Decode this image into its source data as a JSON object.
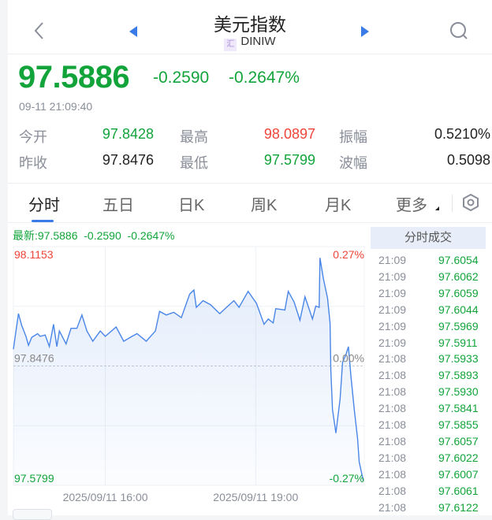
{
  "header": {
    "title": "美元指数",
    "symbol_badge": "汇",
    "symbol": "DINIW"
  },
  "quote": {
    "price": "97.5886",
    "change": "-0.2590",
    "change_pct": "-0.2647%",
    "timestamp": "09-11 21:09:40"
  },
  "stats": [
    {
      "label": "今开",
      "value": "97.8428",
      "color": "green"
    },
    {
      "label": "最高",
      "value": "98.0897",
      "color": "red"
    },
    {
      "label": "振幅",
      "value": "0.5210%",
      "color": "dark"
    },
    {
      "label": "昨收",
      "value": "97.8476",
      "color": "dark"
    },
    {
      "label": "最低",
      "value": "97.5799",
      "color": "green"
    },
    {
      "label": "波幅",
      "value": "0.5098",
      "color": "dark"
    }
  ],
  "tabs": [
    {
      "label": "分时",
      "active": true
    },
    {
      "label": "五日"
    },
    {
      "label": "日K"
    },
    {
      "label": "周K"
    },
    {
      "label": "月K"
    },
    {
      "label": "更多"
    }
  ],
  "chart_info": "最新:97.5886  -0.2590  -0.2647%",
  "colors": {
    "up": "#f0443a",
    "down": "#12a43a",
    "line": "#4a86e8",
    "accent": "#3b7be8"
  },
  "chart_data": {
    "type": "area",
    "ylim": [
      97.5799,
      98.1153
    ],
    "prev_close": 97.8476,
    "y_labels": {
      "top": "98.1153",
      "mid": "97.8476",
      "bottom": "97.5799"
    },
    "pct_labels": {
      "top": "0.27%",
      "mid": "0.00%",
      "bottom": "-0.27%"
    },
    "x_ticks": [
      {
        "time": "16:00",
        "label": "2025/09/11 16:00"
      },
      {
        "time": "19:00",
        "label": "2025/09/11 19:00"
      }
    ],
    "xlim": [
      "14:10",
      "21:10"
    ],
    "points": [
      [
        "14:10",
        97.885
      ],
      [
        "14:12",
        97.912
      ],
      [
        "14:16",
        97.965
      ],
      [
        "14:20",
        97.938
      ],
      [
        "14:25",
        97.914
      ],
      [
        "14:28",
        97.894
      ],
      [
        "14:32",
        97.912
      ],
      [
        "14:39",
        97.92
      ],
      [
        "14:42",
        97.914
      ],
      [
        "14:48",
        97.917
      ],
      [
        "14:53",
        97.891
      ],
      [
        "14:58",
        97.941
      ],
      [
        "15:02",
        97.891
      ],
      [
        "15:05",
        97.926
      ],
      [
        "15:13",
        97.897
      ],
      [
        "15:19",
        97.932
      ],
      [
        "15:26",
        97.932
      ],
      [
        "15:32",
        97.962
      ],
      [
        "15:38",
        97.926
      ],
      [
        "15:45",
        97.903
      ],
      [
        "15:54",
        97.926
      ],
      [
        "16:00",
        97.914
      ],
      [
        "16:13",
        97.935
      ],
      [
        "16:22",
        97.903
      ],
      [
        "16:32",
        97.914
      ],
      [
        "16:38",
        97.92
      ],
      [
        "16:49",
        97.903
      ],
      [
        "17:00",
        97.926
      ],
      [
        "17:05",
        97.97
      ],
      [
        "17:13",
        97.962
      ],
      [
        "17:22",
        97.968
      ],
      [
        "17:31",
        97.956
      ],
      [
        "17:41",
        98.009
      ],
      [
        "17:46",
        98.018
      ],
      [
        "17:49",
        97.979
      ],
      [
        "17:57",
        97.994
      ],
      [
        "18:06",
        97.985
      ],
      [
        "18:17",
        97.965
      ],
      [
        "18:25",
        97.979
      ],
      [
        "18:34",
        97.994
      ],
      [
        "18:40",
        97.979
      ],
      [
        "18:51",
        98.015
      ],
      [
        "19:01",
        97.988
      ],
      [
        "19:10",
        97.941
      ],
      [
        "19:15",
        97.953
      ],
      [
        "19:21",
        97.944
      ],
      [
        "19:24",
        97.976
      ],
      [
        "19:35",
        97.973
      ],
      [
        "19:39",
        98.015
      ],
      [
        "19:46",
        97.991
      ],
      [
        "19:53",
        97.95
      ],
      [
        "19:59",
        98.003
      ],
      [
        "20:08",
        97.953
      ],
      [
        "20:12",
        97.982
      ],
      [
        "20:16",
        97.979
      ],
      [
        "20:17",
        98.09
      ],
      [
        "20:21",
        98.044
      ],
      [
        "20:26",
        98.0
      ],
      [
        "20:29",
        97.944
      ],
      [
        "20:30",
        97.838
      ],
      [
        "20:32",
        97.75
      ],
      [
        "20:36",
        97.697
      ],
      [
        "20:41",
        97.773
      ],
      [
        "20:44",
        97.856
      ],
      [
        "20:48",
        97.873
      ],
      [
        "20:51",
        97.891
      ],
      [
        "20:54",
        97.826
      ],
      [
        "20:58",
        97.75
      ],
      [
        "21:02",
        97.685
      ],
      [
        "21:04",
        97.632
      ],
      [
        "21:06",
        97.614
      ],
      [
        "21:09",
        97.59
      ]
    ]
  },
  "trades": {
    "header": "分时成交",
    "rows": [
      {
        "time": "21:09",
        "price": "97.6054"
      },
      {
        "time": "21:09",
        "price": "97.6062"
      },
      {
        "time": "21:09",
        "price": "97.6059"
      },
      {
        "time": "21:09",
        "price": "97.6044"
      },
      {
        "time": "21:09",
        "price": "97.5969"
      },
      {
        "time": "21:09",
        "price": "97.5911"
      },
      {
        "time": "21:08",
        "price": "97.5933"
      },
      {
        "time": "21:08",
        "price": "97.5893"
      },
      {
        "time": "21:08",
        "price": "97.5930"
      },
      {
        "time": "21:08",
        "price": "97.5841"
      },
      {
        "time": "21:08",
        "price": "97.5855"
      },
      {
        "time": "21:08",
        "price": "97.6057"
      },
      {
        "time": "21:08",
        "price": "97.6022"
      },
      {
        "time": "21:08",
        "price": "97.6007"
      },
      {
        "time": "21:08",
        "price": "97.6061"
      },
      {
        "time": "21:08",
        "price": "97.6122"
      }
    ]
  }
}
